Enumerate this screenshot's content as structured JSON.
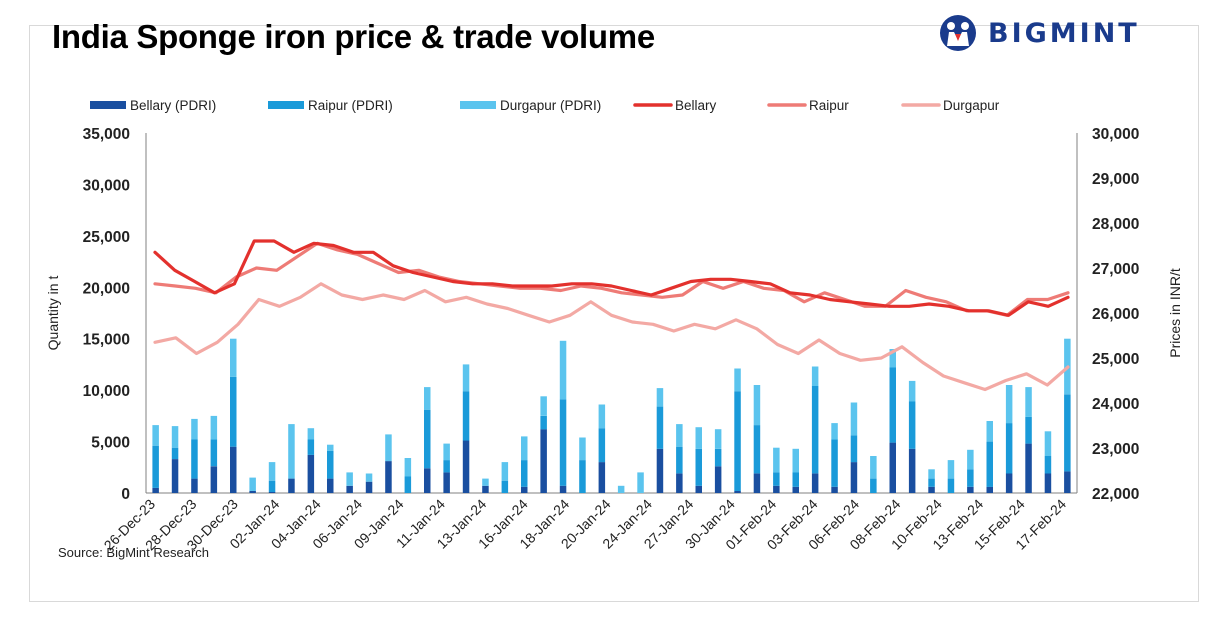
{
  "title": "India Sponge iron price & trade volume",
  "brand": "BIGMINT",
  "source": "Source: BigMint Research",
  "chart_data": {
    "type": "bar",
    "title": "India Sponge iron price & trade volume",
    "left_axis": {
      "label": "Quantity in t",
      "min": 0,
      "max": 35000,
      "ticks": [
        "0",
        "5,000",
        "10,000",
        "15,000",
        "20,000",
        "25,000",
        "30,000",
        "35,000"
      ]
    },
    "right_axis": {
      "label": "Prices in INR/t",
      "min": 22000,
      "max": 30000,
      "ticks": [
        "22,000",
        "23,000",
        "24,000",
        "25,000",
        "26,000",
        "27,000",
        "28,000",
        "29,000",
        "30,000"
      ]
    },
    "x_tick_labels": [
      "26-Dec-23",
      "28-Dec-23",
      "30-Dec-23",
      "02-Jan-24",
      "04-Jan-24",
      "06-Jan-24",
      "09-Jan-24",
      "11-Jan-24",
      "13-Jan-24",
      "16-Jan-24",
      "18-Jan-24",
      "20-Jan-24",
      "24-Jan-24",
      "27-Jan-24",
      "30-Jan-24",
      "01-Feb-24",
      "03-Feb-24",
      "06-Feb-24",
      "08-Feb-24",
      "10-Feb-24",
      "13-Feb-24",
      "15-Feb-24",
      "17-Feb-24"
    ],
    "legend_position": "top",
    "grid": false,
    "bar_series": [
      {
        "name": "Bellary (PDRI)",
        "color": "#1a4fa0",
        "values": [
          500,
          3300,
          1400,
          2600,
          4500,
          200,
          100,
          1400,
          3700,
          1400,
          700,
          1100,
          3100,
          0,
          2400,
          2000,
          5100,
          700,
          0,
          600,
          6200,
          700,
          0,
          3000,
          0,
          0,
          4300,
          1900,
          700,
          2600,
          200,
          1900,
          700,
          600,
          1900,
          600,
          3000,
          0,
          4900,
          4300,
          600,
          0,
          600,
          600,
          1900,
          4800,
          1900,
          2100
        ]
      },
      {
        "name": "Raipur (PDRI)",
        "color": "#1a9ad9",
        "values": [
          4100,
          1100,
          3800,
          2600,
          6800,
          0,
          1100,
          0,
          1500,
          2700,
          0,
          0,
          0,
          1600,
          5700,
          1200,
          4800,
          0,
          1200,
          2600,
          1300,
          8400,
          3200,
          3300,
          0,
          0,
          4100,
          2600,
          3600,
          1700,
          9700,
          4700,
          1300,
          1400,
          8500,
          4600,
          2600,
          1400,
          7300,
          4600,
          800,
          1400,
          1700,
          4400,
          4900,
          2600,
          1700,
          7500
        ]
      },
      {
        "name": "Durgapur (PDRI)",
        "color": "#5bc4ee",
        "values": [
          2000,
          2100,
          2000,
          2300,
          3700,
          1300,
          1800,
          5300,
          1100,
          600,
          1300,
          800,
          2600,
          1800,
          2200,
          1600,
          2600,
          700,
          1800,
          2300,
          1900,
          5700,
          2200,
          2300,
          700,
          2000,
          1800,
          2200,
          2100,
          1900,
          2200,
          3900,
          2400,
          2300,
          1900,
          1600,
          3200,
          2200,
          1800,
          2000,
          900,
          1800,
          1900,
          2000,
          3700,
          2900,
          2400,
          5400
        ]
      }
    ],
    "line_series": [
      {
        "name": "Bellary",
        "color": "#e3312d",
        "values": [
          27350,
          26950,
          26700,
          26450,
          26650,
          27600,
          27600,
          27350,
          27550,
          27500,
          27350,
          27350,
          27050,
          26900,
          26800,
          26700,
          26650,
          26650,
          26600,
          26600,
          26600,
          26650,
          26650,
          26600,
          26500,
          26400,
          26550,
          26700,
          26750,
          26750,
          26700,
          26650,
          26450,
          26400,
          26300,
          26250,
          26200,
          26150,
          26150,
          26200,
          26150,
          26050,
          26050,
          25950,
          26250,
          26150,
          26350
        ]
      },
      {
        "name": "Raipur",
        "color": "#ee7b76",
        "values": [
          26650,
          26600,
          26550,
          26450,
          26800,
          27000,
          26950,
          27250,
          27550,
          27400,
          27300,
          27100,
          26900,
          26950,
          26800,
          26700,
          26650,
          26600,
          26550,
          26550,
          26500,
          26600,
          26550,
          26450,
          26400,
          26350,
          26400,
          26700,
          26550,
          26700,
          26550,
          26500,
          26250,
          26450,
          26300,
          26150,
          26150,
          26500,
          26350,
          26250,
          26050,
          26050,
          25950,
          26300,
          26300,
          26450
        ]
      },
      {
        "name": "Durgapur",
        "color": "#f3a9a4",
        "values": [
          25350,
          25450,
          25100,
          25350,
          25750,
          26300,
          26150,
          26350,
          26650,
          26400,
          26300,
          26400,
          26300,
          26500,
          26250,
          26350,
          26200,
          26100,
          25950,
          25800,
          25950,
          26250,
          25950,
          25800,
          25750,
          25600,
          25750,
          25650,
          25850,
          25650,
          25300,
          25100,
          25400,
          25100,
          24950,
          25000,
          25250,
          24900,
          24600,
          24450,
          24300,
          24500,
          24650,
          24400,
          24800
        ]
      }
    ]
  }
}
